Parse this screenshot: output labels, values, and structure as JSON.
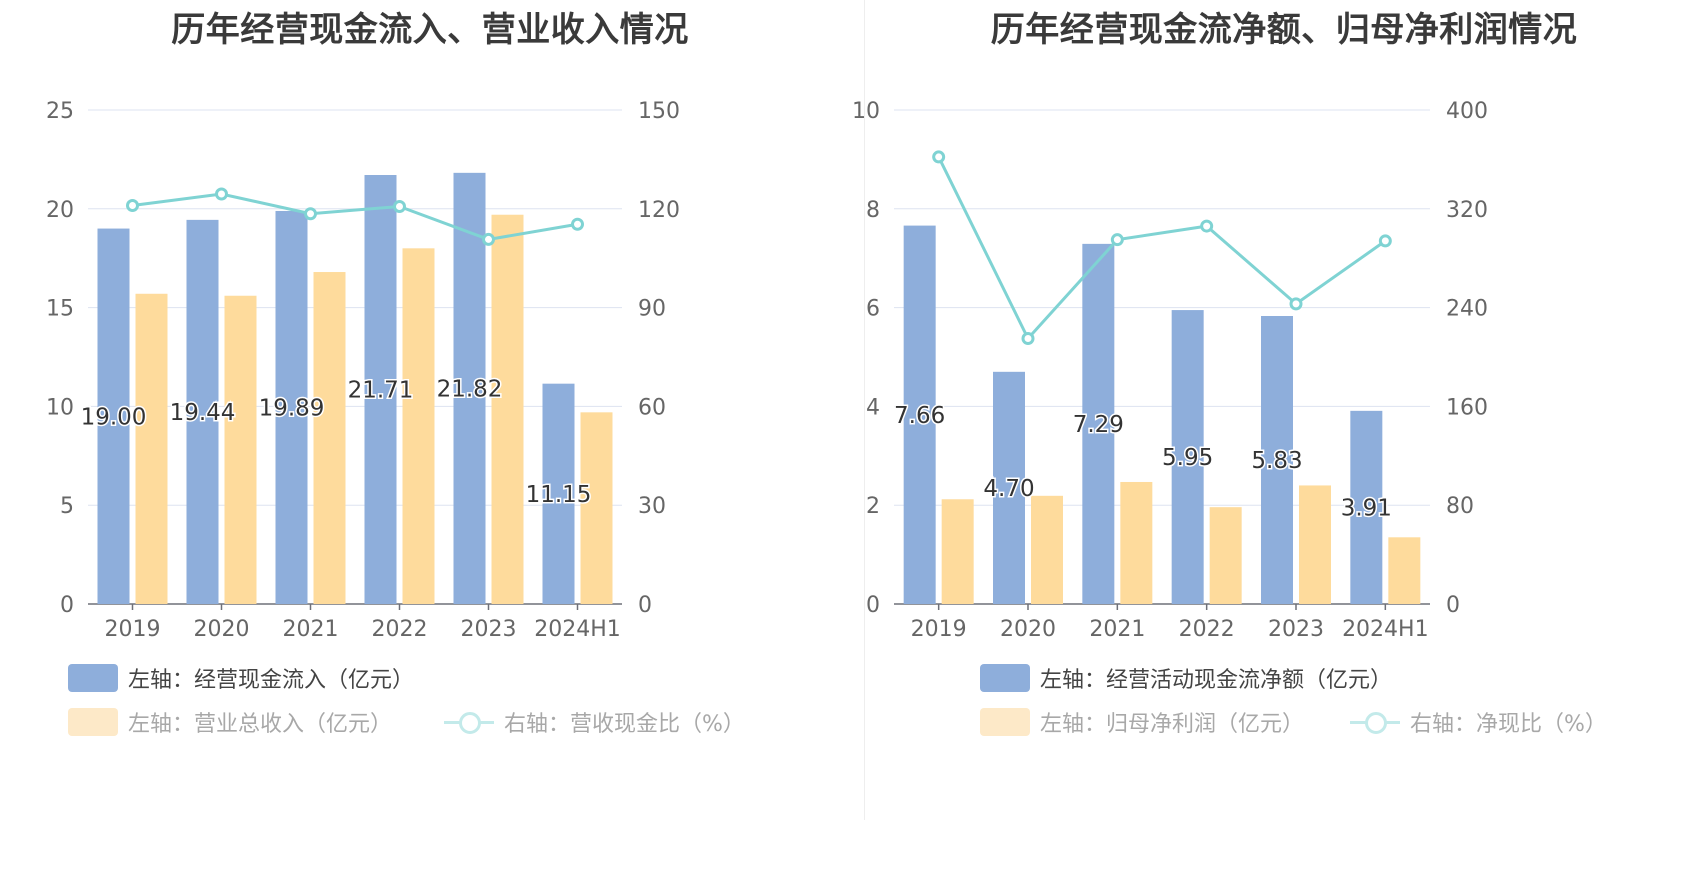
{
  "colors": {
    "bar_primary": "#8eaedb",
    "bar_secondary": "#fedb9c",
    "line": "#7fd3d3",
    "bar_secondary_legend_faded": "#fde9c8",
    "line_legend_faded": "#c3eaea"
  },
  "left": {
    "title": "历年经营现金流入、营业收入情况",
    "legend": [
      {
        "label": "左轴：经营现金流入（亿元）",
        "kind": "bar"
      },
      {
        "label": "左轴：营业总收入（亿元）",
        "kind": "bar"
      },
      {
        "label": "右轴：营收现金比（%）",
        "kind": "line"
      }
    ]
  },
  "right": {
    "title": "历年经营现金流净额、归母净利润情况",
    "legend": [
      {
        "label": "左轴：经营活动现金流净额（亿元）",
        "kind": "bar"
      },
      {
        "label": "左轴：归母净利润（亿元）",
        "kind": "bar"
      },
      {
        "label": "右轴：净现比（%）",
        "kind": "line"
      }
    ]
  },
  "chart_data": [
    {
      "type": "bar",
      "title": "历年经营现金流入、营业收入情况",
      "categories": [
        "2019",
        "2020",
        "2021",
        "2022",
        "2023",
        "2024H1"
      ],
      "y_left": {
        "range": [
          0,
          25
        ],
        "ticks": [
          "0",
          "5",
          "10",
          "15",
          "20",
          "25"
        ]
      },
      "y_right": {
        "range": [
          0,
          150
        ],
        "ticks": [
          "0",
          "30",
          "60",
          "90",
          "120",
          "150"
        ]
      },
      "series": [
        {
          "name": "左轴：经营现金流入（亿元）",
          "axis": "left",
          "type": "bar",
          "values": [
            19.0,
            19.44,
            19.89,
            21.71,
            21.82,
            11.15
          ],
          "labels": [
            "19.00",
            "19.44",
            "19.89",
            "21.71",
            "21.82",
            "11.15"
          ]
        },
        {
          "name": "左轴：营业总收入（亿元）",
          "axis": "left",
          "type": "bar",
          "values": [
            15.7,
            15.6,
            16.8,
            18.0,
            19.7,
            9.7
          ]
        },
        {
          "name": "右轴：营收现金比（%）",
          "axis": "right",
          "type": "line",
          "values": [
            121,
            124.5,
            118.5,
            120.7,
            110.7,
            115.3
          ]
        }
      ],
      "grid": true,
      "legend_position": "bottom-left"
    },
    {
      "type": "bar",
      "title": "历年经营现金流净额、归母净利润情况",
      "categories": [
        "2019",
        "2020",
        "2021",
        "2022",
        "2023",
        "2024H1"
      ],
      "y_left": {
        "range": [
          0,
          10
        ],
        "ticks": [
          "0",
          "2",
          "4",
          "6",
          "8",
          "10"
        ]
      },
      "y_right": {
        "range": [
          0,
          400
        ],
        "ticks": [
          "0",
          "80",
          "160",
          "240",
          "320",
          "400"
        ]
      },
      "series": [
        {
          "name": "左轴：经营活动现金流净额（亿元）",
          "axis": "left",
          "type": "bar",
          "values": [
            7.66,
            4.7,
            7.29,
            5.95,
            5.83,
            3.91
          ],
          "labels": [
            "7.66",
            "4.70",
            "7.29",
            "5.95",
            "5.83",
            "3.91"
          ]
        },
        {
          "name": "左轴：归母净利润（亿元）",
          "axis": "left",
          "type": "bar",
          "values": [
            2.12,
            2.19,
            2.47,
            1.96,
            2.4,
            1.35
          ]
        },
        {
          "name": "右轴：净现比（%）",
          "axis": "right",
          "type": "line",
          "values": [
            362,
            215,
            295,
            306,
            243,
            294
          ]
        }
      ],
      "grid": true,
      "legend_position": "bottom-left"
    }
  ]
}
